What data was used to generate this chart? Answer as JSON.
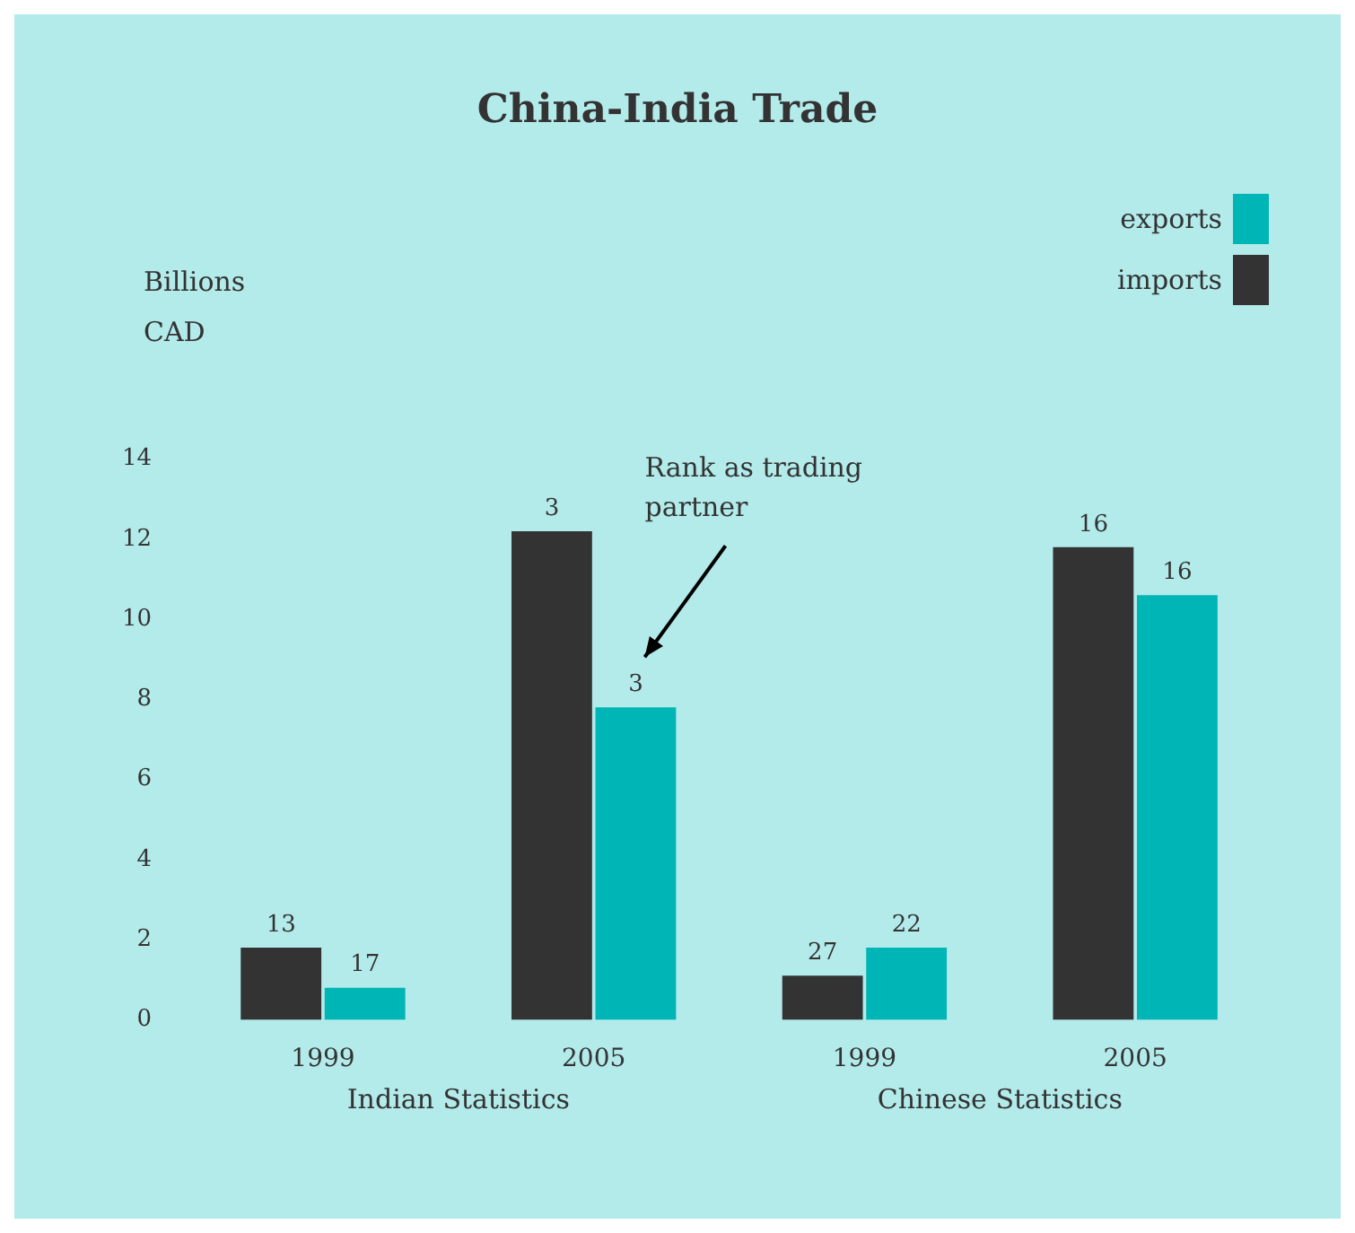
{
  "chart_data": {
    "type": "bar",
    "title": "China-India Trade",
    "ylabel": "Billions CAD",
    "categories": [
      "1999",
      "2005",
      "1999",
      "2005"
    ],
    "series": [
      {
        "name": "imports",
        "color": "#333333",
        "values": [
          1.8,
          12.2,
          1.1,
          11.8
        ]
      },
      {
        "name": "exports",
        "color": "#00b5b5",
        "values": [
          0.8,
          7.8,
          1.8,
          10.6
        ]
      }
    ],
    "ylim": [
      0,
      14
    ],
    "yticks": [
      0,
      2,
      4,
      6,
      8,
      10,
      12,
      14
    ],
    "grid": false,
    "legend": "top right",
    "annotations": [
      "Rank as trading partner",
      "Indian Statistics",
      "Chinese Statistics",
      {
        "text": "13",
        "x": "1999",
        "y": 1.8
      },
      {
        "text": "17",
        "x": "1999",
        "y": 0.8
      },
      {
        "text": "3",
        "x": "2005",
        "y": 12.2
      },
      {
        "text": "3",
        "x": "2005",
        "y": 7.8
      },
      "27",
      "22",
      "16",
      "16"
    ]
  }
}
